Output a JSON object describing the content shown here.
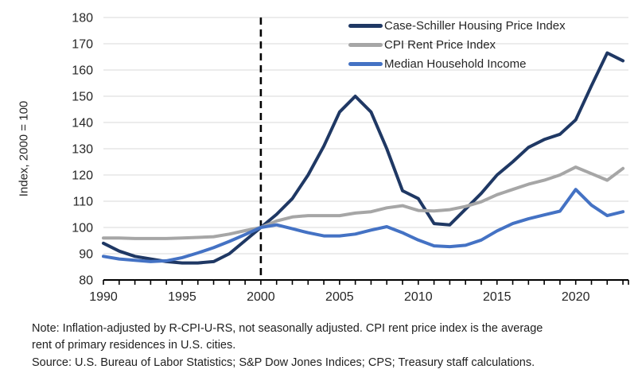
{
  "chart_data": {
    "type": "line",
    "title": "",
    "grid": "horizontal",
    "legend_position": "top-right",
    "background_color": "#ffffff",
    "gridline_color": "#d9d9d9",
    "axis_color": "#000000",
    "y_axis": {
      "label": "Index, 2000 = 100",
      "min": 80,
      "max": 180,
      "tick_step": 10,
      "tick_labels": [
        "80",
        "90",
        "100",
        "110",
        "120",
        "130",
        "140",
        "150",
        "160",
        "170",
        "180"
      ]
    },
    "x_axis": {
      "min": 1990,
      "max": 2023.35,
      "labeled_ticks": [
        1990,
        1995,
        2000,
        2005,
        2010,
        2015,
        2020
      ],
      "minor_tick_interval": 1
    },
    "reference_line": {
      "x": 2000,
      "style": "dashed",
      "color": "#000000"
    },
    "x": [
      1990,
      1991,
      1992,
      1993,
      1994,
      1995,
      1996,
      1997,
      1998,
      1999,
      2000,
      2001,
      2002,
      2003,
      2004,
      2005,
      2006,
      2007,
      2008,
      2009,
      2010,
      2011,
      2012,
      2013,
      2014,
      2015,
      2016,
      2017,
      2018,
      2019,
      2020,
      2021,
      2022,
      2023
    ],
    "series": [
      {
        "name": "Case-Schiller Housing Price Index",
        "color": "#1F3864",
        "values": [
          94,
          91,
          89,
          88,
          87,
          86.5,
          86.5,
          87,
          90,
          95,
          100,
          105,
          111,
          120,
          131,
          144,
          150,
          144,
          130,
          114,
          111,
          101.5,
          101,
          107,
          113,
          120,
          125,
          130.5,
          133.5,
          135.5,
          141,
          154,
          166.5,
          163.5
        ]
      },
      {
        "name": "CPI Rent Price Index",
        "color": "#A6A6A6",
        "values": [
          96,
          96,
          95.8,
          95.8,
          95.8,
          96,
          96.2,
          96.5,
          97.5,
          98.8,
          100,
          102.5,
          104,
          104.5,
          104.5,
          104.5,
          105.5,
          106,
          107.5,
          108.3,
          106.5,
          106.3,
          106.8,
          108,
          109.8,
          112.5,
          114.5,
          116.5,
          118,
          120,
          123,
          120.5,
          118,
          122.5
        ]
      },
      {
        "name": "Median Household Income",
        "color": "#4472C4",
        "values": [
          89,
          88,
          87.5,
          87,
          87.3,
          88.5,
          90.3,
          92.3,
          94.7,
          97.3,
          100,
          101,
          99.5,
          98,
          96.8,
          96.8,
          97.5,
          99,
          100.3,
          98,
          95.2,
          93,
          92.7,
          93.2,
          95.2,
          98.7,
          101.5,
          103.3,
          104.8,
          106.2,
          114.5,
          108.5,
          104.5,
          106
        ]
      }
    ]
  },
  "footnote": {
    "line1": "Note: Inflation-adjusted by R-CPI-U-RS, not seasonally adjusted. CPI rent price index is the average",
    "line2": "rent of primary residences in U.S. cities.",
    "line3": "Source: U.S. Bureau of Labor Statistics; S&P Dow Jones Indices; CPS; Treasury staff calculations."
  }
}
